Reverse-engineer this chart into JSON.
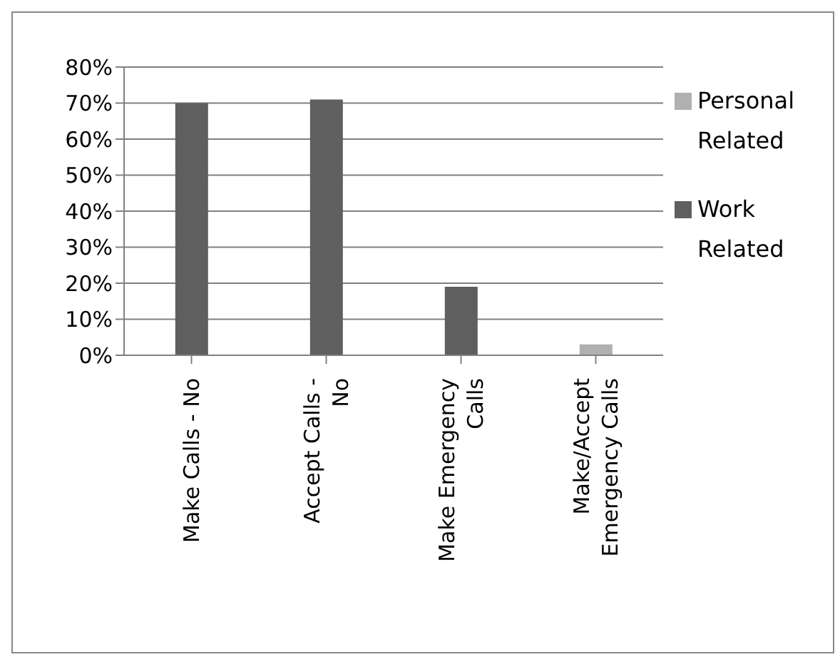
{
  "chart_data": {
    "type": "bar",
    "stacked": true,
    "categories": [
      "Make Calls - No",
      "Accept Calls - No",
      "Make Emergency Calls",
      "Make/Accept Emergency Calls"
    ],
    "series": [
      {
        "name": "Work Related",
        "color": "#5f5f5f",
        "values": [
          70,
          71,
          19,
          0
        ]
      },
      {
        "name": "Personal Related",
        "color": "#b0b0b0",
        "values": [
          0,
          0,
          0,
          3
        ]
      }
    ],
    "ylim": [
      0,
      80
    ],
    "yticks": [
      {
        "value": 0,
        "label": "0%"
      },
      {
        "value": 10,
        "label": "10%"
      },
      {
        "value": 20,
        "label": "20%"
      },
      {
        "value": 30,
        "label": "30%"
      },
      {
        "value": 40,
        "label": "40%"
      },
      {
        "value": 50,
        "label": "50%"
      },
      {
        "value": 60,
        "label": "60%"
      },
      {
        "value": 70,
        "label": "70%"
      },
      {
        "value": 80,
        "label": "80%"
      }
    ],
    "grid": "y",
    "legend": "right"
  }
}
